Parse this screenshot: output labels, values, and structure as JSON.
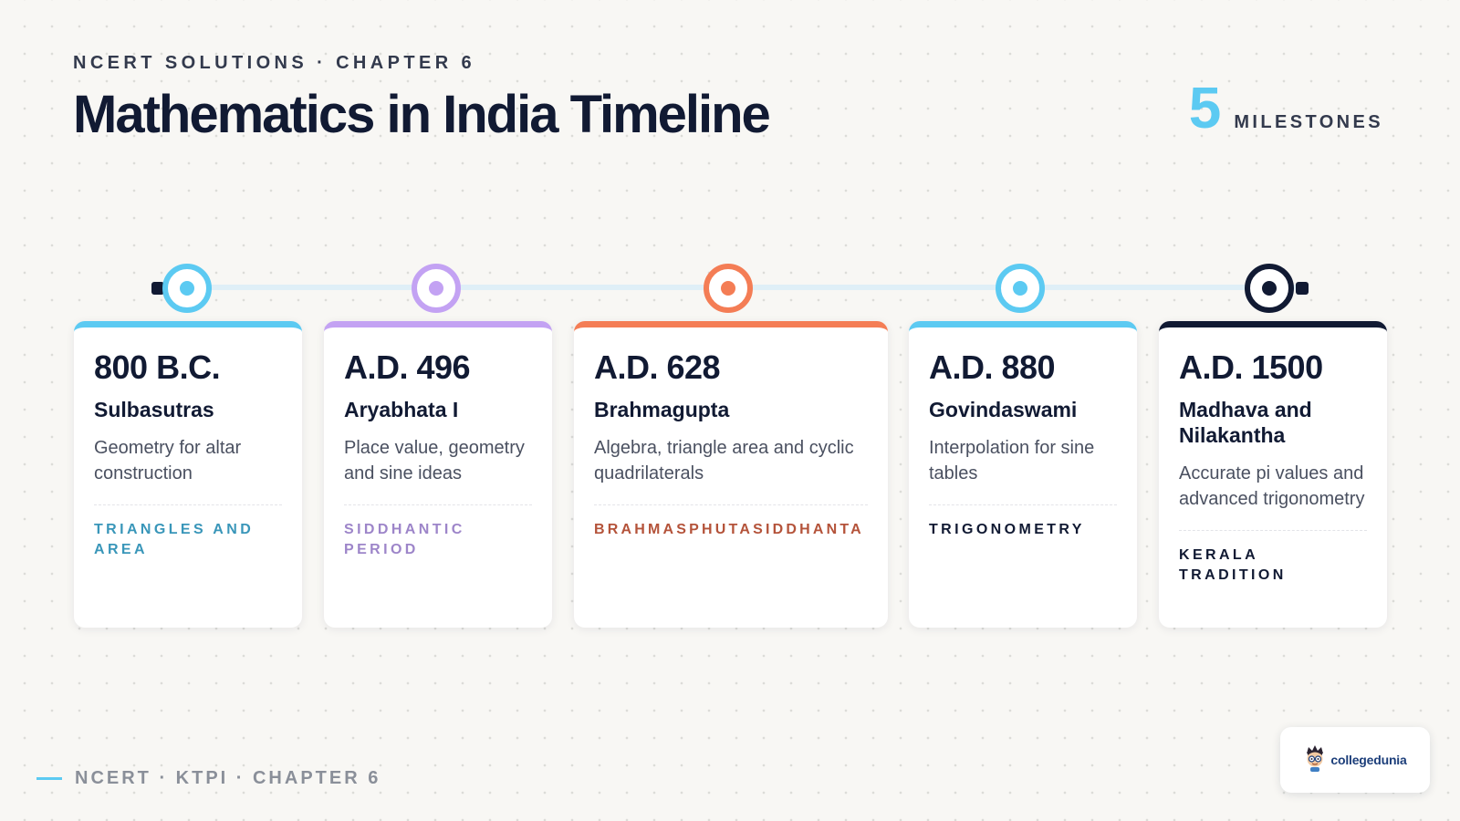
{
  "header": {
    "eyebrow": "NCERT SOLUTIONS · CHAPTER 6",
    "title": "Mathematics in India Timeline",
    "count": "5",
    "count_label": "MILESTONES"
  },
  "colors": {
    "blue": "#5ccaf2",
    "purple": "#c3a2f3",
    "orange": "#f47d55",
    "navy": "#111a33",
    "tag_blue": "#3996b9",
    "tag_purple": "#9d85c9",
    "tag_orange": "#b4533a",
    "tag_navy": "#111a33"
  },
  "milestones": [
    {
      "year": "800 B.C.",
      "name": "Sulbasutras",
      "description": "Geometry for altar construction",
      "tag": "TRIANGLES AND AREA"
    },
    {
      "year": "A.D. 496",
      "name": "Aryabhata I",
      "description": "Place value, geometry and sine ideas",
      "tag": "SIDDHANTIC PERIOD"
    },
    {
      "year": "A.D. 628",
      "name": "Brahmagupta",
      "description": "Algebra, triangle area and cyclic quadrilaterals",
      "tag": "BRAHMASPHUTASIDDHANTA"
    },
    {
      "year": "A.D. 880",
      "name": "Govindaswami",
      "description": "Interpolation for sine tables",
      "tag": "TRIGONOMETRY"
    },
    {
      "year": "A.D. 1500",
      "name": "Madhava and Nilakantha",
      "description": "Accurate pi values and advanced trigonometry",
      "tag": "KERALA TRADITION"
    }
  ],
  "footer": {
    "text": "NCERT · KTPI · CHAPTER 6"
  },
  "logo": {
    "text": "collegedunia",
    "icon": "mascot-icon"
  }
}
